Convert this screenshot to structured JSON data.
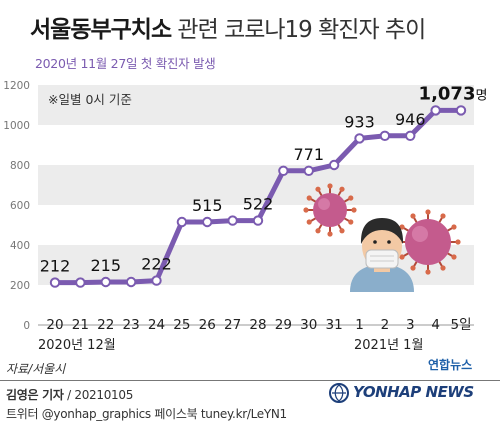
{
  "title_main": "서울동부구치소",
  "title_rest": " 관련 코로나19 확진자 추이",
  "subtitle": "2020년 11월 27일 첫 확진자 발생",
  "note": "※일별 0시 기준",
  "month_label_left": "2020년 12월",
  "month_label_right": "2021년 1월",
  "source": "자료/서울시",
  "credit_name": "김영은 기자",
  "credit_date": "/ 20210105",
  "social": "트위터 @yonhap_graphics  페이스북 tuney.kr/LeYN1",
  "logo_kr": "연합뉴스",
  "logo_en": "YONHAP NEWS",
  "colors": {
    "line": "#7b5bb0",
    "band": "#ececec",
    "axis": "#999999"
  },
  "chart_data": {
    "type": "line",
    "title": "서울동부구치소 관련 코로나19 확진자 추이",
    "x": [
      "20",
      "21",
      "22",
      "23",
      "24",
      "25",
      "26",
      "27",
      "28",
      "29",
      "30",
      "31",
      "1",
      "2",
      "3",
      "4",
      "5일"
    ],
    "values": [
      212,
      212,
      215,
      215,
      222,
      515,
      515,
      522,
      522,
      771,
      771,
      800,
      933,
      946,
      946,
      1073,
      1073
    ],
    "labels": [
      {
        "index": 0,
        "text": "212"
      },
      {
        "index": 2,
        "text": "215"
      },
      {
        "index": 4,
        "text": "222"
      },
      {
        "index": 6,
        "text": "515"
      },
      {
        "index": 8,
        "text": "522"
      },
      {
        "index": 10,
        "text": "771"
      },
      {
        "index": 12,
        "text": "933"
      },
      {
        "index": 14,
        "text": "946"
      },
      {
        "index": 16,
        "text": "1,073",
        "unit": "명"
      }
    ],
    "ylim": [
      0,
      1200
    ],
    "yticks": [
      0,
      200,
      400,
      600,
      800,
      1000,
      1200
    ],
    "grid": "alternating bands",
    "xlabel": "",
    "ylabel": ""
  }
}
